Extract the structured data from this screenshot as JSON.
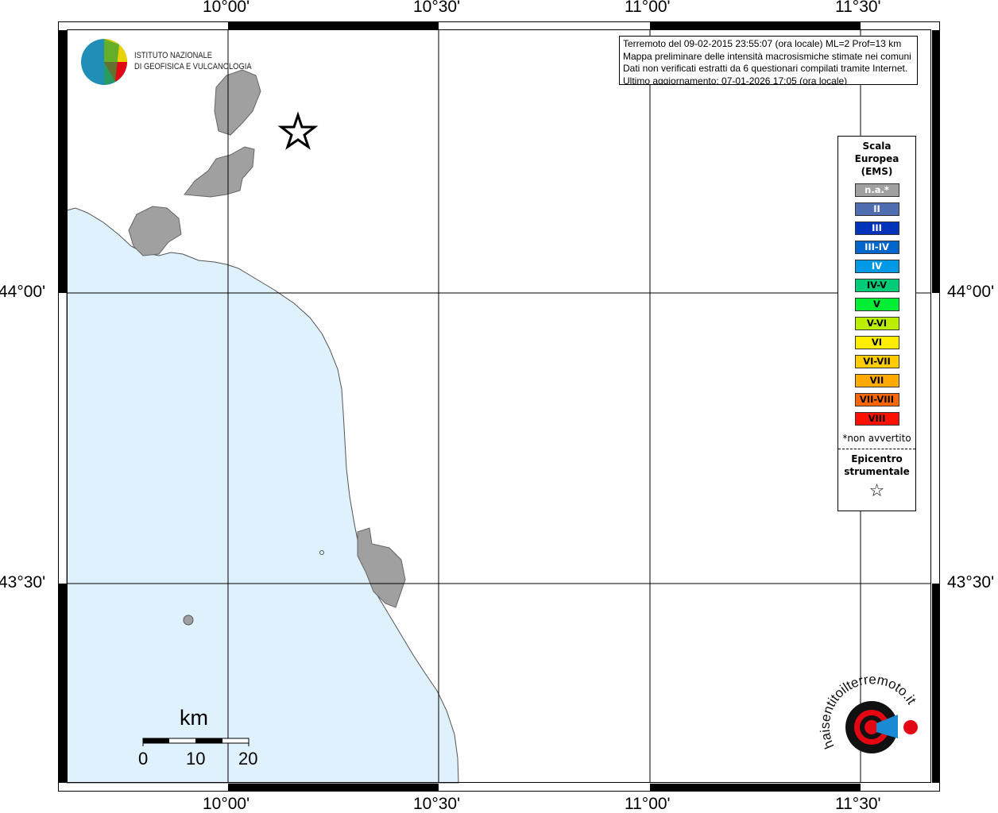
{
  "map": {
    "lon_labels": [
      "10°00'",
      "10°30'",
      "11°00'",
      "11°30'"
    ],
    "lat_labels": [
      "44°00'",
      "43°30'"
    ],
    "colors": {
      "sea": "#dff1fc",
      "land": "#a0a0a0",
      "grid": "#000000"
    }
  },
  "info": {
    "line1": "Terremoto del 09-02-2015 23:55:07 (ora locale) ML=2 Prof=13 km",
    "line2": "Mappa preliminare delle intensità macrosismiche stimate nei comuni",
    "line3": "Dati non verificati estratti da 6 questionari compilati tramite Internet.",
    "line4": "Ultimo aggiornamento: 07-01-2026 17:05 (ora locale)"
  },
  "legend": {
    "title1": "Scala",
    "title2": "Europea",
    "title3": "(EMS)",
    "items": [
      {
        "label": "n.a.*",
        "color": "#a0a0a0",
        "text": "#ffffff"
      },
      {
        "label": "II",
        "color": "#4f6db0",
        "text": "#ffffff"
      },
      {
        "label": "III",
        "color": "#0033bb",
        "text": "#ffffff"
      },
      {
        "label": "III-IV",
        "color": "#0066cc",
        "text": "#ffffff"
      },
      {
        "label": "IV",
        "color": "#0099e6",
        "text": "#ffffff"
      },
      {
        "label": "IV-V",
        "color": "#00cc77",
        "text": "#000000"
      },
      {
        "label": "V",
        "color": "#00ee33",
        "text": "#000000"
      },
      {
        "label": "V-VI",
        "color": "#bbee00",
        "text": "#000000"
      },
      {
        "label": "VI",
        "color": "#ffee00",
        "text": "#000000"
      },
      {
        "label": "VI-VII",
        "color": "#ffcc00",
        "text": "#000000"
      },
      {
        "label": "VII",
        "color": "#ffaa00",
        "text": "#000000"
      },
      {
        "label": "VII-VIII",
        "color": "#ff6600",
        "text": "#000000"
      },
      {
        "label": "VIII",
        "color": "#ff1100",
        "text": "#000000"
      }
    ],
    "note": "*non avvertito",
    "epicenter1": "Epicentro",
    "epicenter2": "strumentale",
    "epicenter_icon": "☆"
  },
  "logo_ingv": {
    "line1": "ISTITUTO NAZIONALE",
    "line2": "DI GEOFISICA E VULCANOLOGIA"
  },
  "logo_hsit": {
    "text": "www.haisentitoilterremoto.it"
  },
  "scale_bar": {
    "unit": "km",
    "labels": [
      "0",
      "10",
      "20"
    ]
  }
}
